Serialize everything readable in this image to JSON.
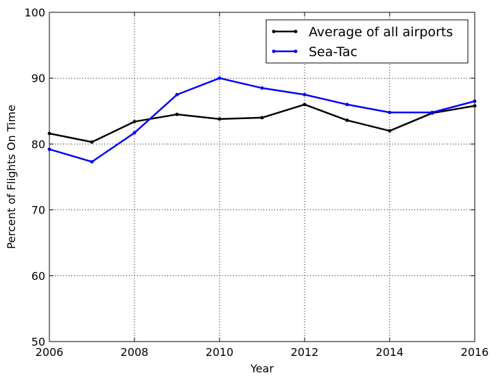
{
  "chart_data": {
    "type": "line",
    "title": "",
    "xlabel": "Year",
    "ylabel": "Percent of Flights On Time",
    "xlim": [
      2006,
      2016
    ],
    "ylim": [
      50,
      100
    ],
    "x_ticks": [
      2006,
      2008,
      2010,
      2012,
      2014,
      2016
    ],
    "y_ticks": [
      50,
      60,
      70,
      80,
      90,
      100
    ],
    "grid": true,
    "legend_position": "top-right",
    "x": [
      2006,
      2007,
      2008,
      2009,
      2010,
      2011,
      2012,
      2013,
      2014,
      2015,
      2016
    ],
    "series": [
      {
        "name": "Average of all airports",
        "color": "#000000",
        "values": [
          81.6,
          80.3,
          83.4,
          84.5,
          83.8,
          84.0,
          86.0,
          83.6,
          82.0,
          84.7,
          85.8
        ]
      },
      {
        "name": "Sea-Tac",
        "color": "#0000ff",
        "values": [
          79.2,
          77.3,
          81.7,
          87.5,
          90.0,
          88.5,
          87.5,
          86.0,
          84.8,
          84.8,
          86.5
        ]
      }
    ]
  }
}
